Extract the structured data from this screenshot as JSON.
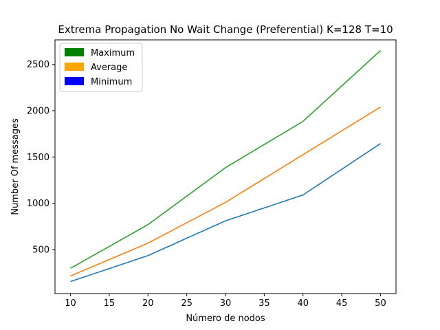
{
  "chart_data": {
    "type": "line",
    "title": "Extrema Propagation No Wait Change (Preferential) K=128 T=10",
    "xlabel": "Número de nodos",
    "ylabel": "Number Of messages",
    "x": [
      10,
      20,
      30,
      40,
      50
    ],
    "xlim": [
      8,
      52
    ],
    "ylim": [
      25,
      2765
    ],
    "xticks": [
      10,
      15,
      20,
      25,
      30,
      35,
      40,
      45,
      50
    ],
    "yticks": [
      500,
      1000,
      1500,
      2000,
      2500
    ],
    "grid": false,
    "legend_position": "top-left",
    "legend": [
      {
        "label": "Maximum",
        "color": "#008000"
      },
      {
        "label": "Average",
        "color": "#ffa500"
      },
      {
        "label": "Minimum",
        "color": "#0000ff"
      }
    ],
    "series": [
      {
        "values": [
          298,
          770,
          1385,
          1885,
          2650
        ],
        "color": "#2ca02c"
      },
      {
        "values": [
          215,
          570,
          1010,
          1525,
          2040
        ],
        "color": "#ff7f0e"
      },
      {
        "values": [
          155,
          435,
          810,
          1090,
          1645
        ],
        "color": "#1f77b4"
      }
    ]
  }
}
